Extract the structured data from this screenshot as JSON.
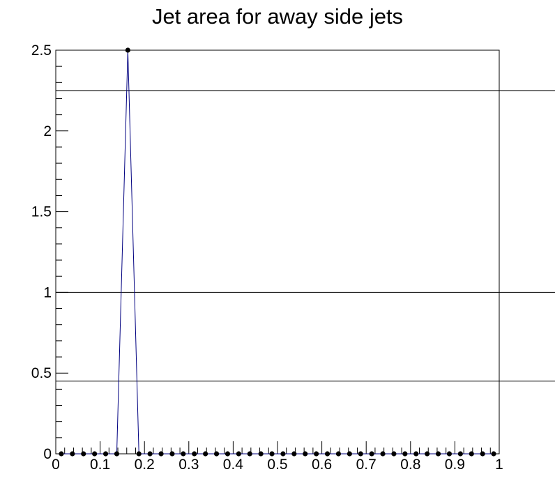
{
  "chart_data": {
    "type": "line",
    "title": "Jet area for away side jets",
    "xlabel": "",
    "ylabel": "",
    "xlim": [
      0,
      1
    ],
    "ylim": [
      0,
      2.5
    ],
    "grid": false,
    "x_tick_labels": [
      "0",
      "0.1",
      "0.2",
      "0.3",
      "0.4",
      "0.5",
      "0.6",
      "0.7",
      "0.8",
      "0.9",
      "1"
    ],
    "y_tick_labels": [
      "0",
      "0.5",
      "1",
      "1.5",
      "2",
      "2.5"
    ],
    "horizontal_lines": [
      0.45,
      1.0,
      2.25
    ],
    "series": [
      {
        "color": "#000080",
        "x": [
          0.0125,
          0.0375,
          0.0625,
          0.0875,
          0.1125,
          0.1375,
          0.1625,
          0.1875,
          0.2125,
          0.2375,
          0.2625,
          0.2875,
          0.3125,
          0.3375,
          0.3625,
          0.3875,
          0.4125,
          0.4375,
          0.4625,
          0.4875,
          0.5125,
          0.5375,
          0.5625,
          0.5875,
          0.6125,
          0.6375,
          0.6625,
          0.6875,
          0.7125,
          0.7375,
          0.7625,
          0.7875,
          0.8125,
          0.8375,
          0.8625,
          0.8875,
          0.9125,
          0.9375,
          0.9625,
          0.9875
        ],
        "y": [
          0,
          0,
          0,
          0,
          0,
          0,
          2.5,
          0,
          0,
          0,
          0,
          0,
          0,
          0,
          0,
          0,
          0,
          0,
          0,
          0,
          0,
          0,
          0,
          0,
          0,
          0,
          0,
          0,
          0,
          0,
          0,
          0,
          0,
          0,
          0,
          0,
          0,
          0,
          0,
          0
        ]
      }
    ]
  }
}
